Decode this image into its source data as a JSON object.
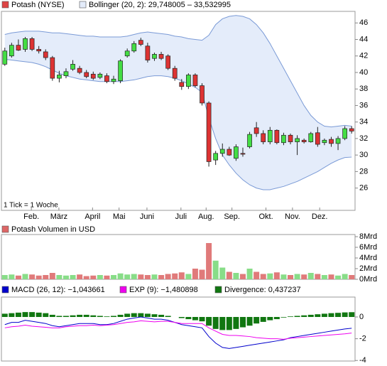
{
  "chart_data": [
    {
      "type": "candlestick",
      "title": "Potash (NYSE)",
      "title_color": "#dd4444",
      "up_color": "#44dd44",
      "down_color": "#dd3333",
      "open": [
        41.0,
        42.0,
        43.3,
        42.8,
        44.1,
        42.8,
        42.5,
        41.8,
        39.3,
        39.6,
        40.4,
        40.5,
        40.0,
        39.8,
        39.4,
        39.6,
        38.9,
        39.0,
        42.0,
        42.6,
        43.9,
        43.2,
        41.7,
        42.2,
        42.0,
        40.5,
        38.8,
        38.3,
        39.7,
        38.4,
        36.3,
        29.4,
        30.2,
        30.7,
        29.6,
        30.2,
        31.0,
        33.3,
        32.6,
        31.6,
        33.0,
        31.5,
        32.4,
        31.6,
        31.8,
        31.6,
        32.7,
        31.5,
        31.9,
        31.4,
        32.0,
        33.2
      ],
      "high": [
        43.0,
        43.6,
        44.0,
        44.3,
        44.3,
        43.2,
        42.8,
        42.0,
        40.2,
        40.5,
        41.5,
        40.8,
        40.3,
        40.1,
        40.0,
        39.9,
        39.6,
        41.6,
        42.9,
        43.8,
        44.2,
        43.6,
        42.4,
        42.5,
        42.2,
        40.8,
        39.2,
        39.9,
        39.9,
        38.7,
        36.5,
        30.5,
        31.4,
        31.0,
        31.3,
        30.9,
        32.8,
        34.0,
        33.0,
        33.4,
        33.1,
        32.7,
        32.6,
        32.4,
        32.0,
        32.8,
        33.4,
        32.0,
        32.2,
        32.3,
        33.5,
        33.5
      ],
      "low": [
        40.8,
        41.8,
        42.6,
        42.5,
        42.6,
        42.3,
        41.5,
        39.0,
        38.8,
        39.3,
        40.2,
        39.8,
        39.3,
        39.1,
        39.2,
        38.7,
        38.6,
        38.7,
        41.8,
        42.4,
        43.2,
        41.2,
        41.4,
        41.5,
        40.3,
        39.0,
        37.9,
        38.0,
        38.2,
        36.0,
        28.6,
        28.8,
        29.8,
        29.9,
        29.3,
        29.8,
        30.8,
        32.2,
        31.3,
        31.3,
        31.3,
        31.2,
        31.3,
        30.0,
        31.4,
        31.5,
        31.0,
        31.2,
        31.0,
        30.6,
        31.8,
        32.6
      ],
      "close": [
        42.6,
        43.3,
        42.7,
        44.1,
        42.8,
        42.6,
        41.8,
        39.3,
        39.7,
        40.1,
        41.0,
        40.0,
        39.5,
        39.3,
        39.8,
        38.9,
        39.2,
        41.4,
        42.6,
        43.5,
        43.4,
        41.5,
        42.2,
        41.7,
        40.5,
        39.3,
        38.3,
        39.7,
        38.4,
        36.3,
        29.2,
        30.2,
        30.7,
        30.0,
        31.0,
        30.1,
        32.5,
        32.6,
        31.6,
        33.0,
        31.5,
        32.4,
        31.6,
        32.0,
        31.6,
        32.6,
        31.3,
        31.8,
        31.4,
        32.0,
        33.2,
        32.9
      ],
      "bands": {
        "name": "Bollinger (20, 2): 29,748005 – 33,532995",
        "color": "#7a9ad6",
        "fill": "#e4ecfa",
        "upper": [
          44.6,
          44.8,
          44.9,
          45.0,
          45.0,
          45.0,
          44.9,
          44.8,
          44.8,
          44.7,
          44.6,
          44.5,
          44.4,
          44.4,
          44.3,
          44.3,
          44.3,
          44.3,
          44.4,
          44.6,
          44.8,
          44.9,
          44.8,
          44.7,
          44.6,
          44.4,
          44.3,
          44.1,
          44.0,
          43.9,
          44.5,
          45.8,
          46.5,
          46.8,
          46.9,
          46.8,
          46.5,
          45.8,
          44.8,
          43.5,
          42.0,
          40.5,
          39.0,
          37.5,
          36.0,
          34.8,
          34.0,
          33.5,
          33.4,
          33.5,
          33.6,
          33.5
        ],
        "lower": [
          41.6,
          41.5,
          41.4,
          41.3,
          41.2,
          41.0,
          40.7,
          40.3,
          39.9,
          39.6,
          39.4,
          39.2,
          39.1,
          39.0,
          38.9,
          38.9,
          38.9,
          38.9,
          39.0,
          39.1,
          39.3,
          39.5,
          39.6,
          39.6,
          39.5,
          39.3,
          39.0,
          38.6,
          38.2,
          37.6,
          34.5,
          32.0,
          30.0,
          28.8,
          27.8,
          27.0,
          26.4,
          26.0,
          25.8,
          25.8,
          26.0,
          26.2,
          26.5,
          26.8,
          27.2,
          27.6,
          28.0,
          28.5,
          29.0,
          29.4,
          29.7,
          29.75
        ]
      },
      "annotation": "1 Tick = 1 Woche",
      "xlim": [
        -0.5,
        51.5
      ],
      "xticks": [
        {
          "value": 3.9,
          "label": "Feb."
        },
        {
          "value": 7.95,
          "label": "März"
        },
        {
          "value": 12.9,
          "label": "April"
        },
        {
          "value": 16.8,
          "label": "Mai"
        },
        {
          "value": 20.9,
          "label": "Juni"
        },
        {
          "value": 25.9,
          "label": "Juli"
        },
        {
          "value": 29.6,
          "label": "Aug."
        },
        {
          "value": 33.4,
          "label": "Sep."
        },
        {
          "value": 38.4,
          "label": "Okt."
        },
        {
          "value": 42.3,
          "label": "Nov."
        },
        {
          "value": 46.3,
          "label": "Dez."
        }
      ],
      "ylim": [
        23.3,
        47.4
      ],
      "yticks": [
        26,
        28,
        30,
        32,
        34,
        36,
        38,
        40,
        42,
        44,
        46
      ]
    },
    {
      "type": "bar",
      "title": "Potash Volumen in USD",
      "title_color": "#dd6666",
      "up_color": "#88dd88",
      "down_color": "#e07a7a",
      "values": [
        0.8,
        0.9,
        0.7,
        1.0,
        0.9,
        0.7,
        0.8,
        1.2,
        0.8,
        0.7,
        0.8,
        0.9,
        0.6,
        0.7,
        0.8,
        0.7,
        0.8,
        1.1,
        0.9,
        1.0,
        0.9,
        0.8,
        0.9,
        0.8,
        1.0,
        1.1,
        1.3,
        1.0,
        2.0,
        1.8,
        6.8,
        3.5,
        2.2,
        1.4,
        1.2,
        1.0,
        2.0,
        1.4,
        1.0,
        1.1,
        1.3,
        0.9,
        0.8,
        1.0,
        0.9,
        1.2,
        1.0,
        0.8,
        0.9,
        0.7,
        1.0,
        0.8
      ],
      "xlim": [
        -0.5,
        51.5
      ],
      "ylim": [
        0,
        8.4
      ],
      "yticks": [
        {
          "value": 0,
          "label": "0Mrd"
        },
        {
          "value": 2,
          "label": "2Mrd"
        },
        {
          "value": 4,
          "label": "4Mrd"
        },
        {
          "value": 6,
          "label": "6Mrd"
        },
        {
          "value": 8,
          "label": "8Mrd"
        }
      ]
    },
    {
      "type": "combo",
      "series": [
        {
          "name": "MACD (26, 12): −1,043661",
          "color": "#0000cc",
          "kind": "line",
          "values": [
            -0.7,
            -0.5,
            -0.5,
            -0.3,
            -0.4,
            -0.5,
            -0.6,
            -0.8,
            -0.9,
            -0.8,
            -0.7,
            -0.6,
            -0.6,
            -0.6,
            -0.7,
            -0.7,
            -0.6,
            -0.4,
            -0.2,
            -0.1,
            0,
            -0.1,
            -0.2,
            -0.2,
            -0.3,
            -0.5,
            -0.7,
            -0.8,
            -0.9,
            -1.0,
            -1.8,
            -2.4,
            -2.8,
            -2.9,
            -2.8,
            -2.7,
            -2.6,
            -2.5,
            -2.4,
            -2.3,
            -2.2,
            -2.1,
            -1.9,
            -1.8,
            -1.7,
            -1.6,
            -1.5,
            -1.4,
            -1.3,
            -1.2,
            -1.1,
            -1.04
          ]
        },
        {
          "name": "EXP (9): −1,480898",
          "color": "#ee00ee",
          "kind": "line",
          "values": [
            -1.0,
            -0.9,
            -0.85,
            -0.75,
            -0.85,
            -0.9,
            -0.95,
            -1.0,
            -1.0,
            -0.9,
            -0.85,
            -0.8,
            -0.8,
            -0.75,
            -0.8,
            -0.75,
            -0.7,
            -0.6,
            -0.5,
            -0.45,
            -0.35,
            -0.4,
            -0.45,
            -0.4,
            -0.4,
            -0.5,
            -0.6,
            -0.6,
            -0.6,
            -0.6,
            -1.0,
            -1.3,
            -1.6,
            -1.7,
            -1.7,
            -1.75,
            -1.8,
            -1.9,
            -1.95,
            -2.0,
            -2.0,
            -2.05,
            -1.95,
            -1.9,
            -1.85,
            -1.8,
            -1.75,
            -1.7,
            -1.65,
            -1.6,
            -1.55,
            -1.48
          ]
        },
        {
          "name": "Divergence: 0,437237",
          "color": "#117711",
          "kind": "bar",
          "values": [
            0.3,
            0.35,
            0.4,
            0.45,
            0.45,
            0.4,
            0.35,
            0.2,
            0.1,
            0.1,
            0.15,
            0.2,
            0.2,
            0.15,
            0.1,
            0.05,
            0.1,
            0.2,
            0.3,
            0.35,
            0.35,
            0.3,
            0.25,
            0.2,
            0.1,
            0,
            -0.1,
            -0.2,
            -0.3,
            -0.4,
            -0.8,
            -1.1,
            -1.2,
            -1.2,
            -1.1,
            -0.95,
            -0.8,
            -0.6,
            -0.45,
            -0.3,
            -0.2,
            -0.05,
            0.05,
            0.1,
            0.15,
            0.2,
            0.25,
            0.3,
            0.35,
            0.38,
            0.42,
            0.44
          ]
        }
      ],
      "xlim": [
        -0.5,
        51.5
      ],
      "ylim": [
        -4.05,
        1.83
      ],
      "yticks": [
        0,
        -2,
        -4
      ]
    }
  ]
}
